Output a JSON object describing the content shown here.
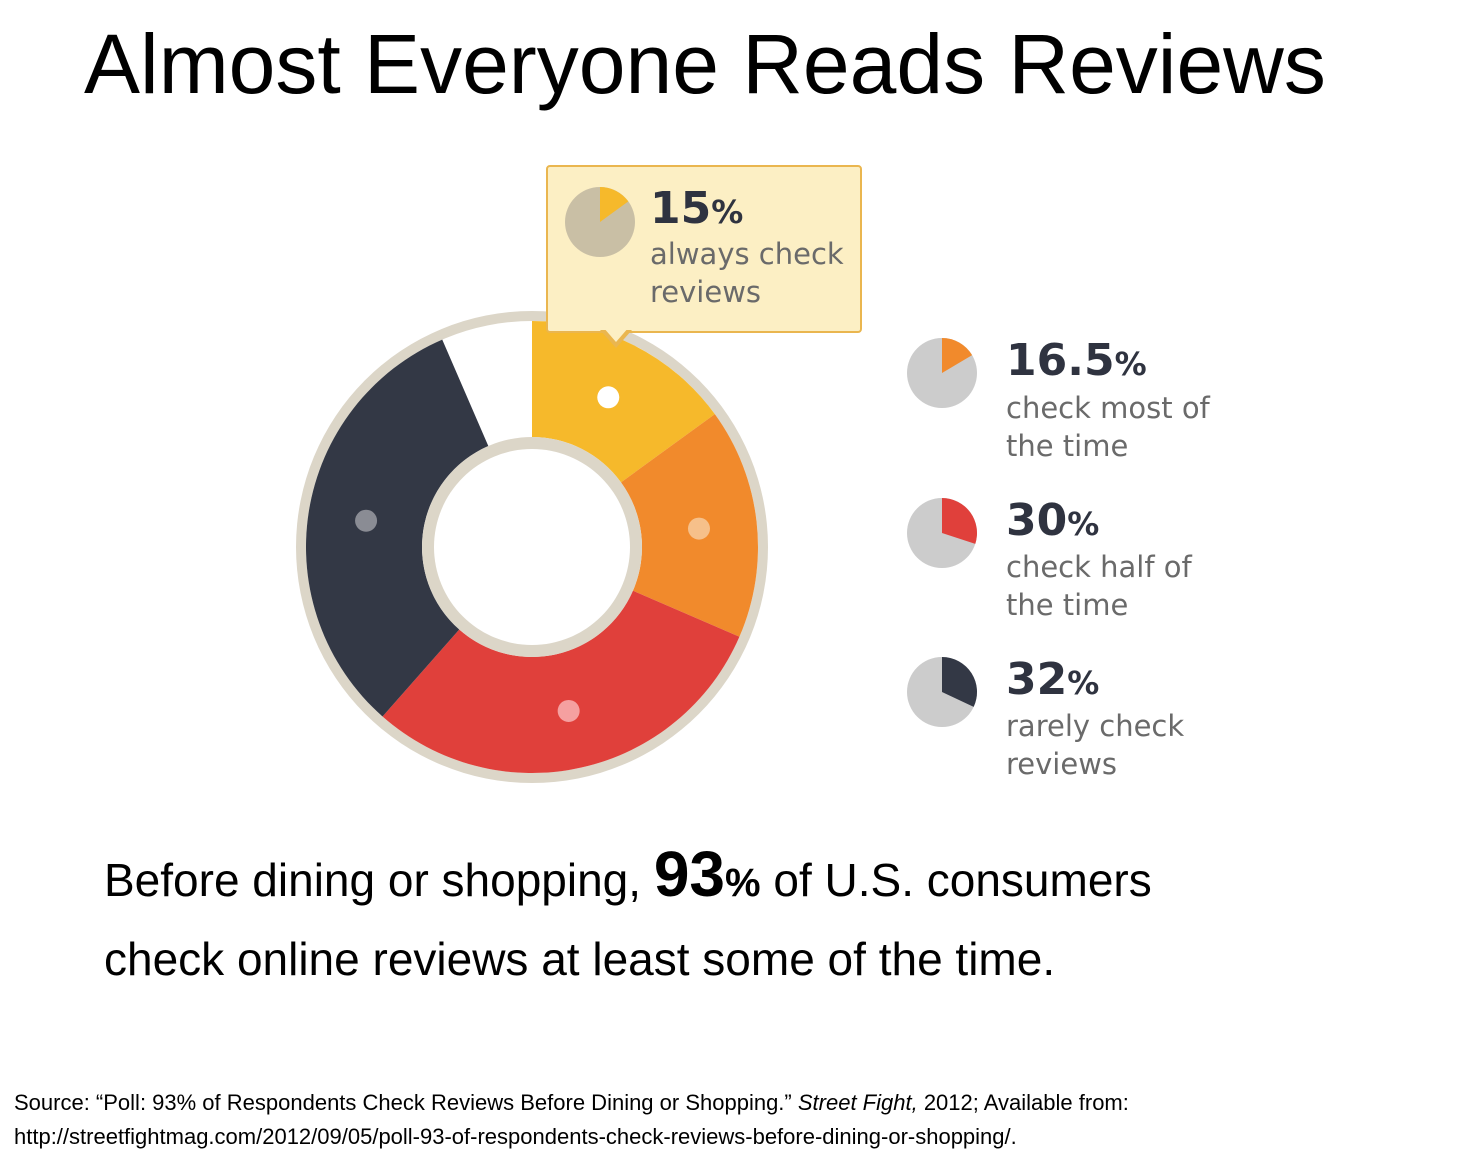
{
  "page_title": "Almost Everyone Reads Reviews",
  "chart_data": {
    "type": "pie",
    "variant": "donut",
    "slices": [
      {
        "value": 15,
        "pct_text": "15",
        "label_line1": "always check",
        "label_line2": "reviews",
        "color": "#f6b92b",
        "dot_color": "#ffffff"
      },
      {
        "value": 16.5,
        "pct_text": "16.5",
        "label_line1": "check most of",
        "label_line2": "the time",
        "color": "#f18a2c",
        "dot_color": "#f6c08a"
      },
      {
        "value": 30,
        "pct_text": "30",
        "label_line1": "check half of",
        "label_line2": "the time",
        "color": "#e0403b",
        "dot_color": "#f5a0a0"
      },
      {
        "value": 32,
        "pct_text": "32",
        "label_line1": "rarely check",
        "label_line2": "reviews",
        "color": "#333845",
        "dot_color": "#8a8c94"
      }
    ],
    "remainder_color": "#ffffff",
    "ring_color": "#dcd6c8",
    "mini_pie_base_color": "#cccccc",
    "callout_mini_base_color": "#c9bfa5",
    "percent_symbol": "%"
  },
  "summary": {
    "line1_prefix": "Before dining or shopping, ",
    "big_number": "93",
    "big_percent": "%",
    "line1_suffix": " of U.S. consumers",
    "line2": "check online reviews at least some of the time."
  },
  "source": {
    "prefix": "Source: “Poll: 93% of Respondents Check Reviews Before Dining or Shopping.” ",
    "publication": "Street Fight,",
    "suffix": " 2012; Available from:",
    "url": "http://streetfightmag.com/2012/09/05/poll-93-of-respondents-check-reviews-before-dining-or-shopping/."
  }
}
